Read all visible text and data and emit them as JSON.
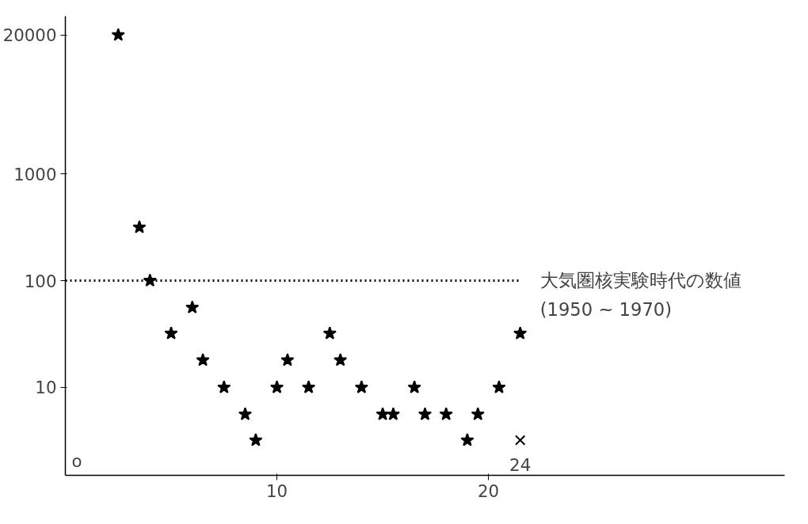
{
  "chart_data": {
    "type": "scatter",
    "marker": "star",
    "grid": false,
    "log": "y",
    "xlim": [
      0,
      34
    ],
    "xticks": [
      10,
      20
    ],
    "ylim": [
      1.5,
      30000
    ],
    "yticks": [
      10,
      100,
      1000,
      20000
    ],
    "series": [
      {
        "color": "#000000",
        "x": [
          2.5,
          3.5,
          4,
          5,
          6,
          6.5,
          7.5,
          8.5,
          9,
          10,
          10.5,
          11.5,
          12.5,
          13,
          14,
          15,
          15.5,
          16.5,
          17,
          18,
          19,
          19.5,
          20.5,
          21.5
        ],
        "values": [
          20000,
          316,
          100,
          32,
          56,
          18,
          10,
          5.6,
          3.2,
          10,
          18,
          10,
          32,
          18,
          10,
          5.6,
          5.6,
          10,
          5.6,
          5.6,
          3.2,
          5.6,
          10,
          32
        ]
      },
      {
        "type": "scatter",
        "marker": "cross",
        "color": "#000000",
        "x": [
          21.5
        ],
        "values": [
          3.2
        ]
      }
    ],
    "ref_lines": [
      {
        "axis": "y",
        "value": 100,
        "label": "大気圏核実験時代の数値\n(1950 ~ 1970)",
        "line_style": "dotted",
        "color": "#000000"
      }
    ],
    "annotations": [
      "24",
      "o"
    ]
  }
}
